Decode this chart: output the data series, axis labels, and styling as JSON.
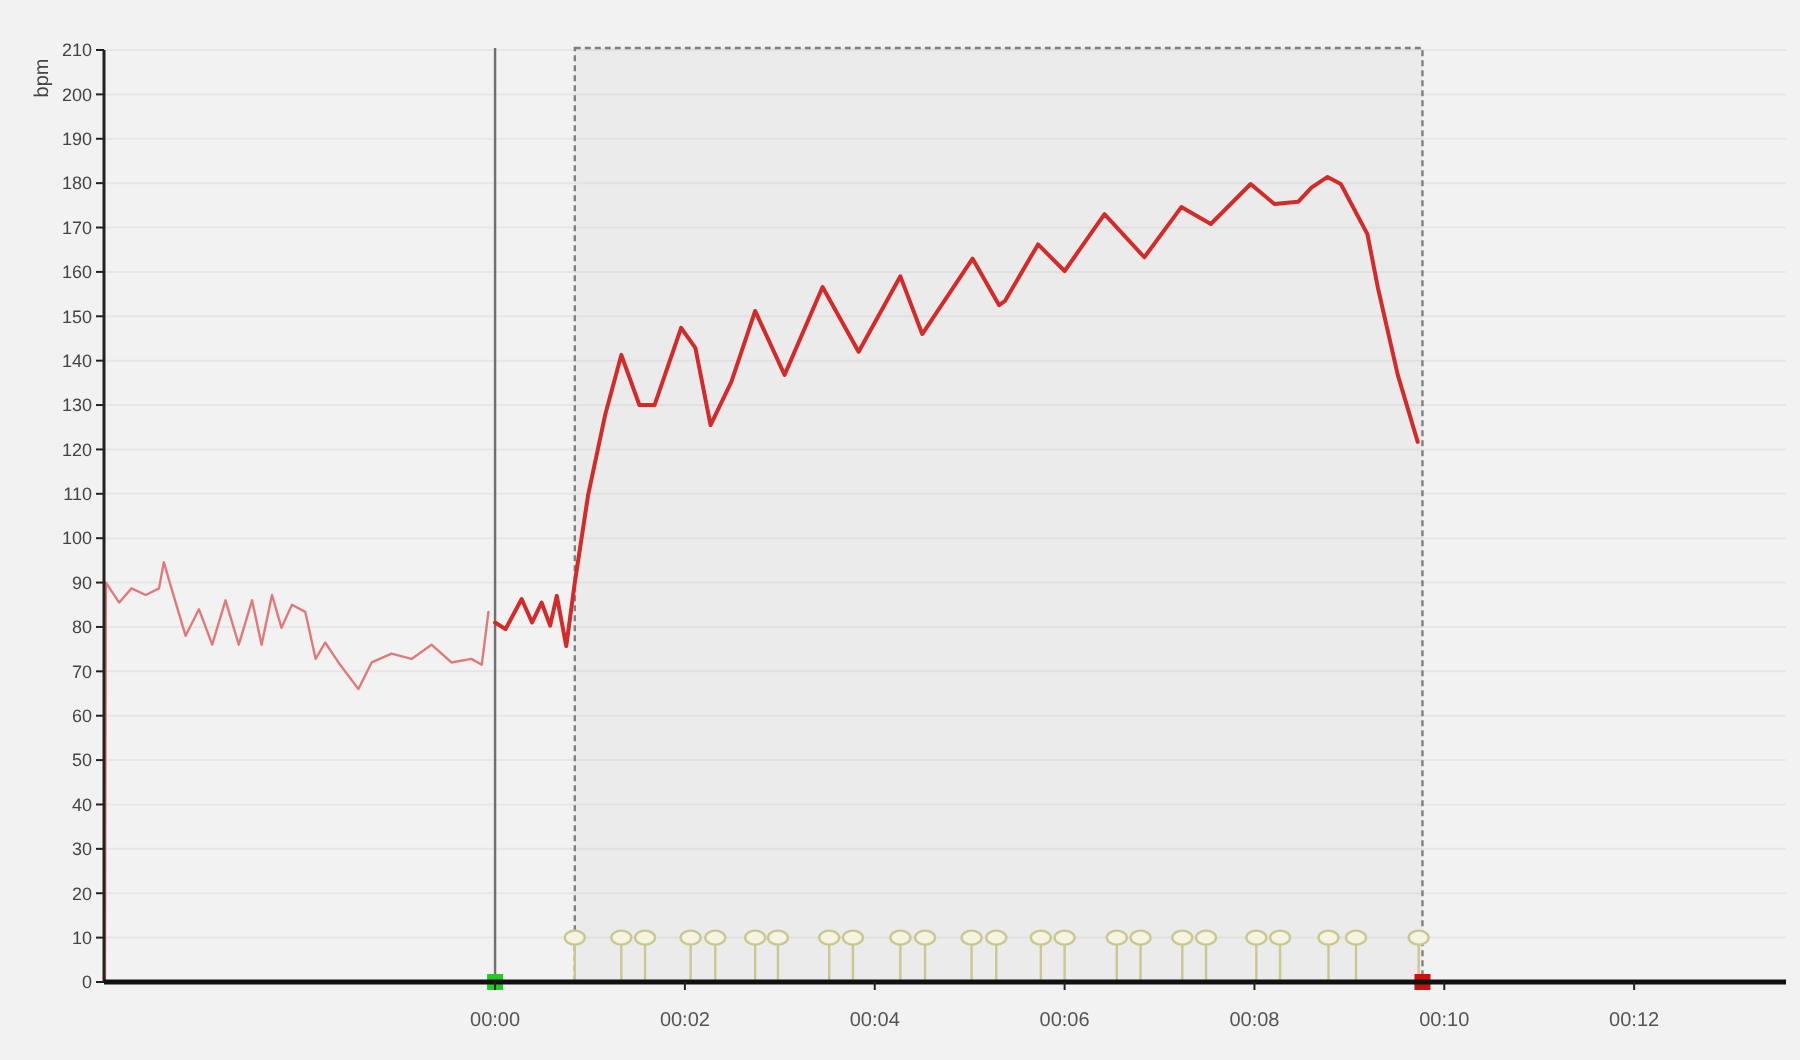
{
  "chart_data": {
    "type": "line",
    "ylabel": "bpm",
    "xlim": [
      -4.12,
      13.6
    ],
    "ylim": [
      0,
      210
    ],
    "xticks": [
      {
        "value": 0,
        "label": "00:00"
      },
      {
        "value": 2,
        "label": "00:02"
      },
      {
        "value": 4,
        "label": "00:04"
      },
      {
        "value": 6,
        "label": "00:06"
      },
      {
        "value": 8,
        "label": "00:08"
      },
      {
        "value": 10,
        "label": "00:10"
      },
      {
        "value": 12,
        "label": "00:12"
      }
    ],
    "yticks": [
      0,
      10,
      20,
      30,
      40,
      50,
      60,
      70,
      80,
      90,
      100,
      110,
      120,
      130,
      140,
      150,
      160,
      170,
      180,
      190,
      200,
      210
    ],
    "grid": "y",
    "line_style": "solid",
    "ref_lines": [
      {
        "axis": "x",
        "value": 0,
        "color": "#707070",
        "line_style": "solid"
      }
    ],
    "bands": [
      {
        "axis": "x",
        "from": 0.84,
        "to": 9.77,
        "color": "#808080"
      }
    ],
    "series": [
      {
        "color": "#e07a7a",
        "x": [
          -4.11,
          -4.1,
          -3.96,
          -3.83,
          -3.68,
          -3.54,
          -3.49,
          -3.4,
          -3.26,
          -3.12,
          -2.98,
          -2.84,
          -2.7,
          -2.56,
          -2.46,
          -2.35,
          -2.25,
          -2.14,
          -2,
          -1.89,
          -1.79,
          -1.65,
          -1.44,
          -1.3,
          -1.09,
          -0.88,
          -0.67,
          -0.46,
          -0.25,
          -0.14,
          -0.07
        ],
        "values": [
          0,
          90,
          85.5,
          88.7,
          87.2,
          88.7,
          94.6,
          88,
          78,
          84,
          76,
          86,
          76,
          86,
          76,
          87.2,
          79.8,
          85,
          83.4,
          72.8,
          76.5,
          72,
          66,
          72,
          74,
          72.8,
          76,
          72,
          72.8,
          71.5,
          83.4
        ]
      },
      {
        "color": "#d42a2a",
        "x": [
          0,
          0.11,
          0.28,
          0.39,
          0.49,
          0.58,
          0.65,
          0.75,
          0.84,
          0.98,
          1.16,
          1.33,
          1.52,
          1.68,
          1.96,
          2.11,
          2.27,
          2.49,
          2.74,
          3.05,
          3.45,
          3.83,
          4.27,
          4.5,
          5.03,
          5.31,
          5.37,
          5.72,
          6.0,
          6.42,
          6.84,
          7.23,
          7.54,
          7.96,
          8.21,
          8.46,
          8.6,
          8.77,
          8.91,
          9.19,
          9.3,
          9.51,
          9.72
        ],
        "values": [
          81,
          79.5,
          86.3,
          81,
          85.5,
          80.3,
          87,
          75.7,
          90,
          109.7,
          127.8,
          141.3,
          130,
          130,
          147.4,
          142.9,
          125.5,
          135.3,
          151.2,
          136.8,
          156.6,
          142,
          159,
          146,
          163,
          152.5,
          153.4,
          166.2,
          160.2,
          173,
          163.3,
          174.6,
          170.8,
          179.8,
          175.3,
          175.8,
          179,
          181.4,
          179.8,
          168.5,
          156.5,
          136.8,
          121.7
        ]
      },
      {
        "type": "lollipop",
        "color": "#c8c890",
        "x": [
          0.84,
          1.33,
          1.58,
          2.06,
          2.32,
          2.74,
          2.98,
          3.52,
          3.77,
          4.27,
          4.53,
          5.02,
          5.28,
          5.75,
          6.0,
          6.55,
          6.8,
          7.24,
          7.49,
          8.02,
          8.27,
          8.78,
          9.07,
          9.73
        ],
        "values": [
          10,
          10,
          10,
          10,
          10,
          10,
          10,
          10,
          10,
          10,
          10,
          10,
          10,
          10,
          10,
          10,
          10,
          10,
          10,
          10,
          10,
          10,
          10,
          10
        ]
      },
      {
        "type": "scatter",
        "color": "#22cc22",
        "marker": "square",
        "x": [
          0
        ],
        "values": [
          0
        ]
      },
      {
        "type": "scatter",
        "color": "#cc1111",
        "marker": "square",
        "x": [
          9.77
        ],
        "values": [
          0
        ]
      }
    ]
  }
}
